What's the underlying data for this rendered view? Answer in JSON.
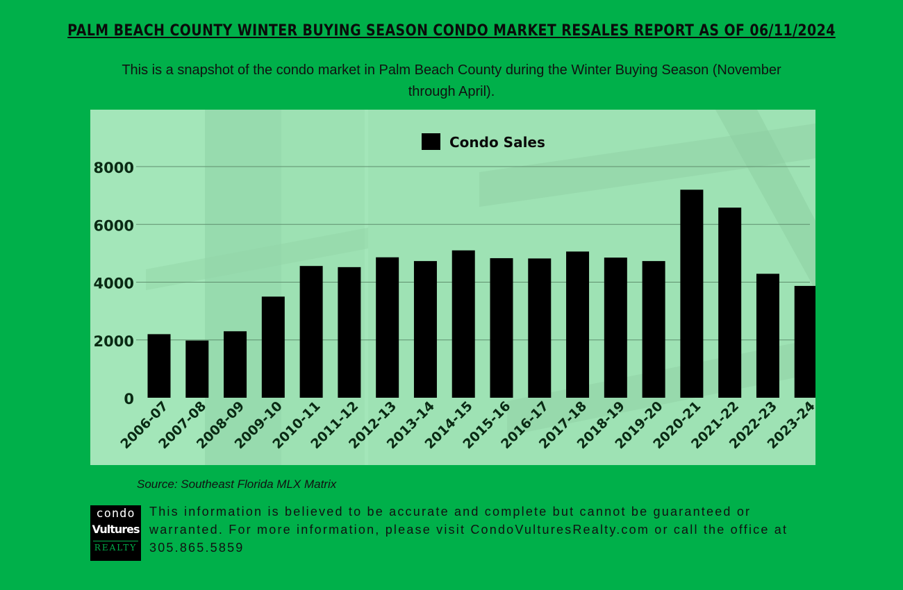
{
  "header": {
    "title": "PALM BEACH COUNTY WINTER BUYING SEASON CONDO MARKET RESALES REPORT AS OF 06/11/2024",
    "subtitle": "This is a snapshot of the condo market in Palm Beach County during the Winter Buying Season (November through April)."
  },
  "chart_data": {
    "type": "bar",
    "title": "",
    "xlabel": "",
    "ylabel": "",
    "categories": [
      "2006-07",
      "2007-08",
      "2008-09",
      "2009-10",
      "2010-11",
      "2011-12",
      "2012-13",
      "2013-14",
      "2014-15",
      "2015-16",
      "2016-17",
      "2017-18",
      "2018-19",
      "2019-20",
      "2020-21",
      "2021-22",
      "2022-23",
      "2023-24"
    ],
    "series": [
      {
        "name": "Condo Sales",
        "values": [
          2200,
          1980,
          2300,
          3500,
          4560,
          4520,
          4860,
          4730,
          5100,
          4830,
          4820,
          5060,
          4850,
          4730,
          7200,
          6580,
          4290,
          3870
        ]
      }
    ],
    "ylim": [
      0,
      8000
    ],
    "yticks": [
      0,
      2000,
      4000,
      6000,
      8000
    ],
    "grid": true,
    "legend_position": "top-center",
    "bar_color": "#000000"
  },
  "footer": {
    "source": "Source: Southeast Florida MLX Matrix",
    "disclaimer": "This information is believed to be accurate and complete but cannot be guaranteed or warranted. For more information, please visit CondoVulturesRealty.com or call the office at 305.865.5859",
    "logo": {
      "line1": "condo",
      "line2": "Vultures",
      "line3": "REALTY"
    }
  }
}
